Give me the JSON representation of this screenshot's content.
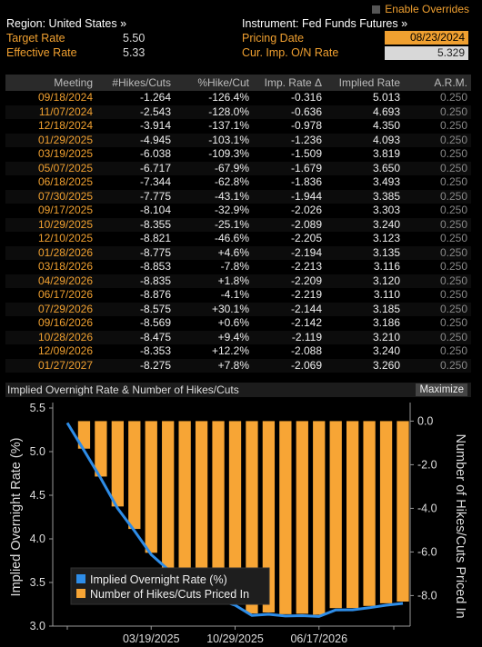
{
  "header": {
    "enable_overrides": "Enable Overrides",
    "region": "Region: United States »",
    "instrument": "Instrument: Fed Funds Futures »",
    "target_rate_label": "Target Rate",
    "target_rate_value": "5.50",
    "effective_rate_label": "Effective Rate",
    "effective_rate_value": "5.33",
    "pricing_date_label": "Pricing Date",
    "pricing_date_value": "08/23/2024",
    "cur_on_label": "Cur. Imp. O/N Rate",
    "cur_on_value": "5.329"
  },
  "table": {
    "headers": [
      "Meeting",
      "#Hikes/Cuts",
      "%Hike/Cut",
      "Imp. Rate Δ",
      "Implied Rate",
      "A.R.M."
    ],
    "rows": [
      [
        "09/18/2024",
        "-1.264",
        "-126.4%",
        "-0.316",
        "5.013",
        "0.250"
      ],
      [
        "11/07/2024",
        "-2.543",
        "-128.0%",
        "-0.636",
        "4.693",
        "0.250"
      ],
      [
        "12/18/2024",
        "-3.914",
        "-137.1%",
        "-0.978",
        "4.350",
        "0.250"
      ],
      [
        "01/29/2025",
        "-4.945",
        "-103.1%",
        "-1.236",
        "4.093",
        "0.250"
      ],
      [
        "03/19/2025",
        "-6.038",
        "-109.3%",
        "-1.509",
        "3.819",
        "0.250"
      ],
      [
        "05/07/2025",
        "-6.717",
        "-67.9%",
        "-1.679",
        "3.650",
        "0.250"
      ],
      [
        "06/18/2025",
        "-7.344",
        "-62.8%",
        "-1.836",
        "3.493",
        "0.250"
      ],
      [
        "07/30/2025",
        "-7.775",
        "-43.1%",
        "-1.944",
        "3.385",
        "0.250"
      ],
      [
        "09/17/2025",
        "-8.104",
        "-32.9%",
        "-2.026",
        "3.303",
        "0.250"
      ],
      [
        "10/29/2025",
        "-8.355",
        "-25.1%",
        "-2.089",
        "3.240",
        "0.250"
      ],
      [
        "12/10/2025",
        "-8.821",
        "-46.6%",
        "-2.205",
        "3.123",
        "0.250"
      ],
      [
        "01/28/2026",
        "-8.775",
        "+4.6%",
        "-2.194",
        "3.135",
        "0.250"
      ],
      [
        "03/18/2026",
        "-8.853",
        "-7.8%",
        "-2.213",
        "3.116",
        "0.250"
      ],
      [
        "04/29/2026",
        "-8.835",
        "+1.8%",
        "-2.209",
        "3.120",
        "0.250"
      ],
      [
        "06/17/2026",
        "-8.876",
        "-4.1%",
        "-2.219",
        "3.110",
        "0.250"
      ],
      [
        "07/29/2026",
        "-8.575",
        "+30.1%",
        "-2.144",
        "3.185",
        "0.250"
      ],
      [
        "09/16/2026",
        "-8.569",
        "+0.6%",
        "-2.142",
        "3.186",
        "0.250"
      ],
      [
        "10/28/2026",
        "-8.475",
        "+9.4%",
        "-2.119",
        "3.210",
        "0.250"
      ],
      [
        "12/09/2026",
        "-8.353",
        "+12.2%",
        "-2.088",
        "3.240",
        "0.250"
      ],
      [
        "01/27/2027",
        "-8.275",
        "+7.8%",
        "-2.069",
        "3.260",
        "0.250"
      ]
    ]
  },
  "chart": {
    "title": "Implied Overnight Rate & Number of Hikes/Cuts",
    "maximize_label": "Maximize"
  },
  "chart_data": {
    "type": "bar",
    "title": "Implied Overnight Rate & Number of Hikes/Cuts",
    "ylabel": "Implied Overnight Rate (%)",
    "y2label": "Number of Hikes/Cuts Priced In",
    "ylim": [
      3.0,
      5.5
    ],
    "y2lim": [
      -9.4,
      0.6
    ],
    "yticks": [
      "3.0",
      "3.5",
      "4.0",
      "4.5",
      "5.0",
      "5.5"
    ],
    "y2ticks": [
      "0.0",
      "-2.0",
      "-4.0",
      "-6.0",
      "-8.0"
    ],
    "xticks": [
      "03/19/2025",
      "10/29/2025",
      "06/17/2026"
    ],
    "legend_position": "bottom-left",
    "series": [
      {
        "name": "Implied Overnight Rate (%)",
        "type": "line",
        "color": "#2e8de8",
        "values": [
          5.329,
          5.013,
          4.693,
          4.35,
          4.093,
          3.819,
          3.65,
          3.493,
          3.385,
          3.303,
          3.24,
          3.123,
          3.135,
          3.116,
          3.12,
          3.11,
          3.185,
          3.186,
          3.21,
          3.24,
          3.26
        ]
      },
      {
        "name": "Number of Hikes/Cuts Priced In",
        "type": "bar",
        "color": "#f7a535",
        "values": [
          -1.264,
          -2.543,
          -3.914,
          -4.945,
          -6.038,
          -6.717,
          -7.344,
          -7.775,
          -8.104,
          -8.355,
          -8.821,
          -8.775,
          -8.853,
          -8.835,
          -8.876,
          -8.575,
          -8.569,
          -8.475,
          -8.353,
          -8.275
        ]
      }
    ]
  }
}
